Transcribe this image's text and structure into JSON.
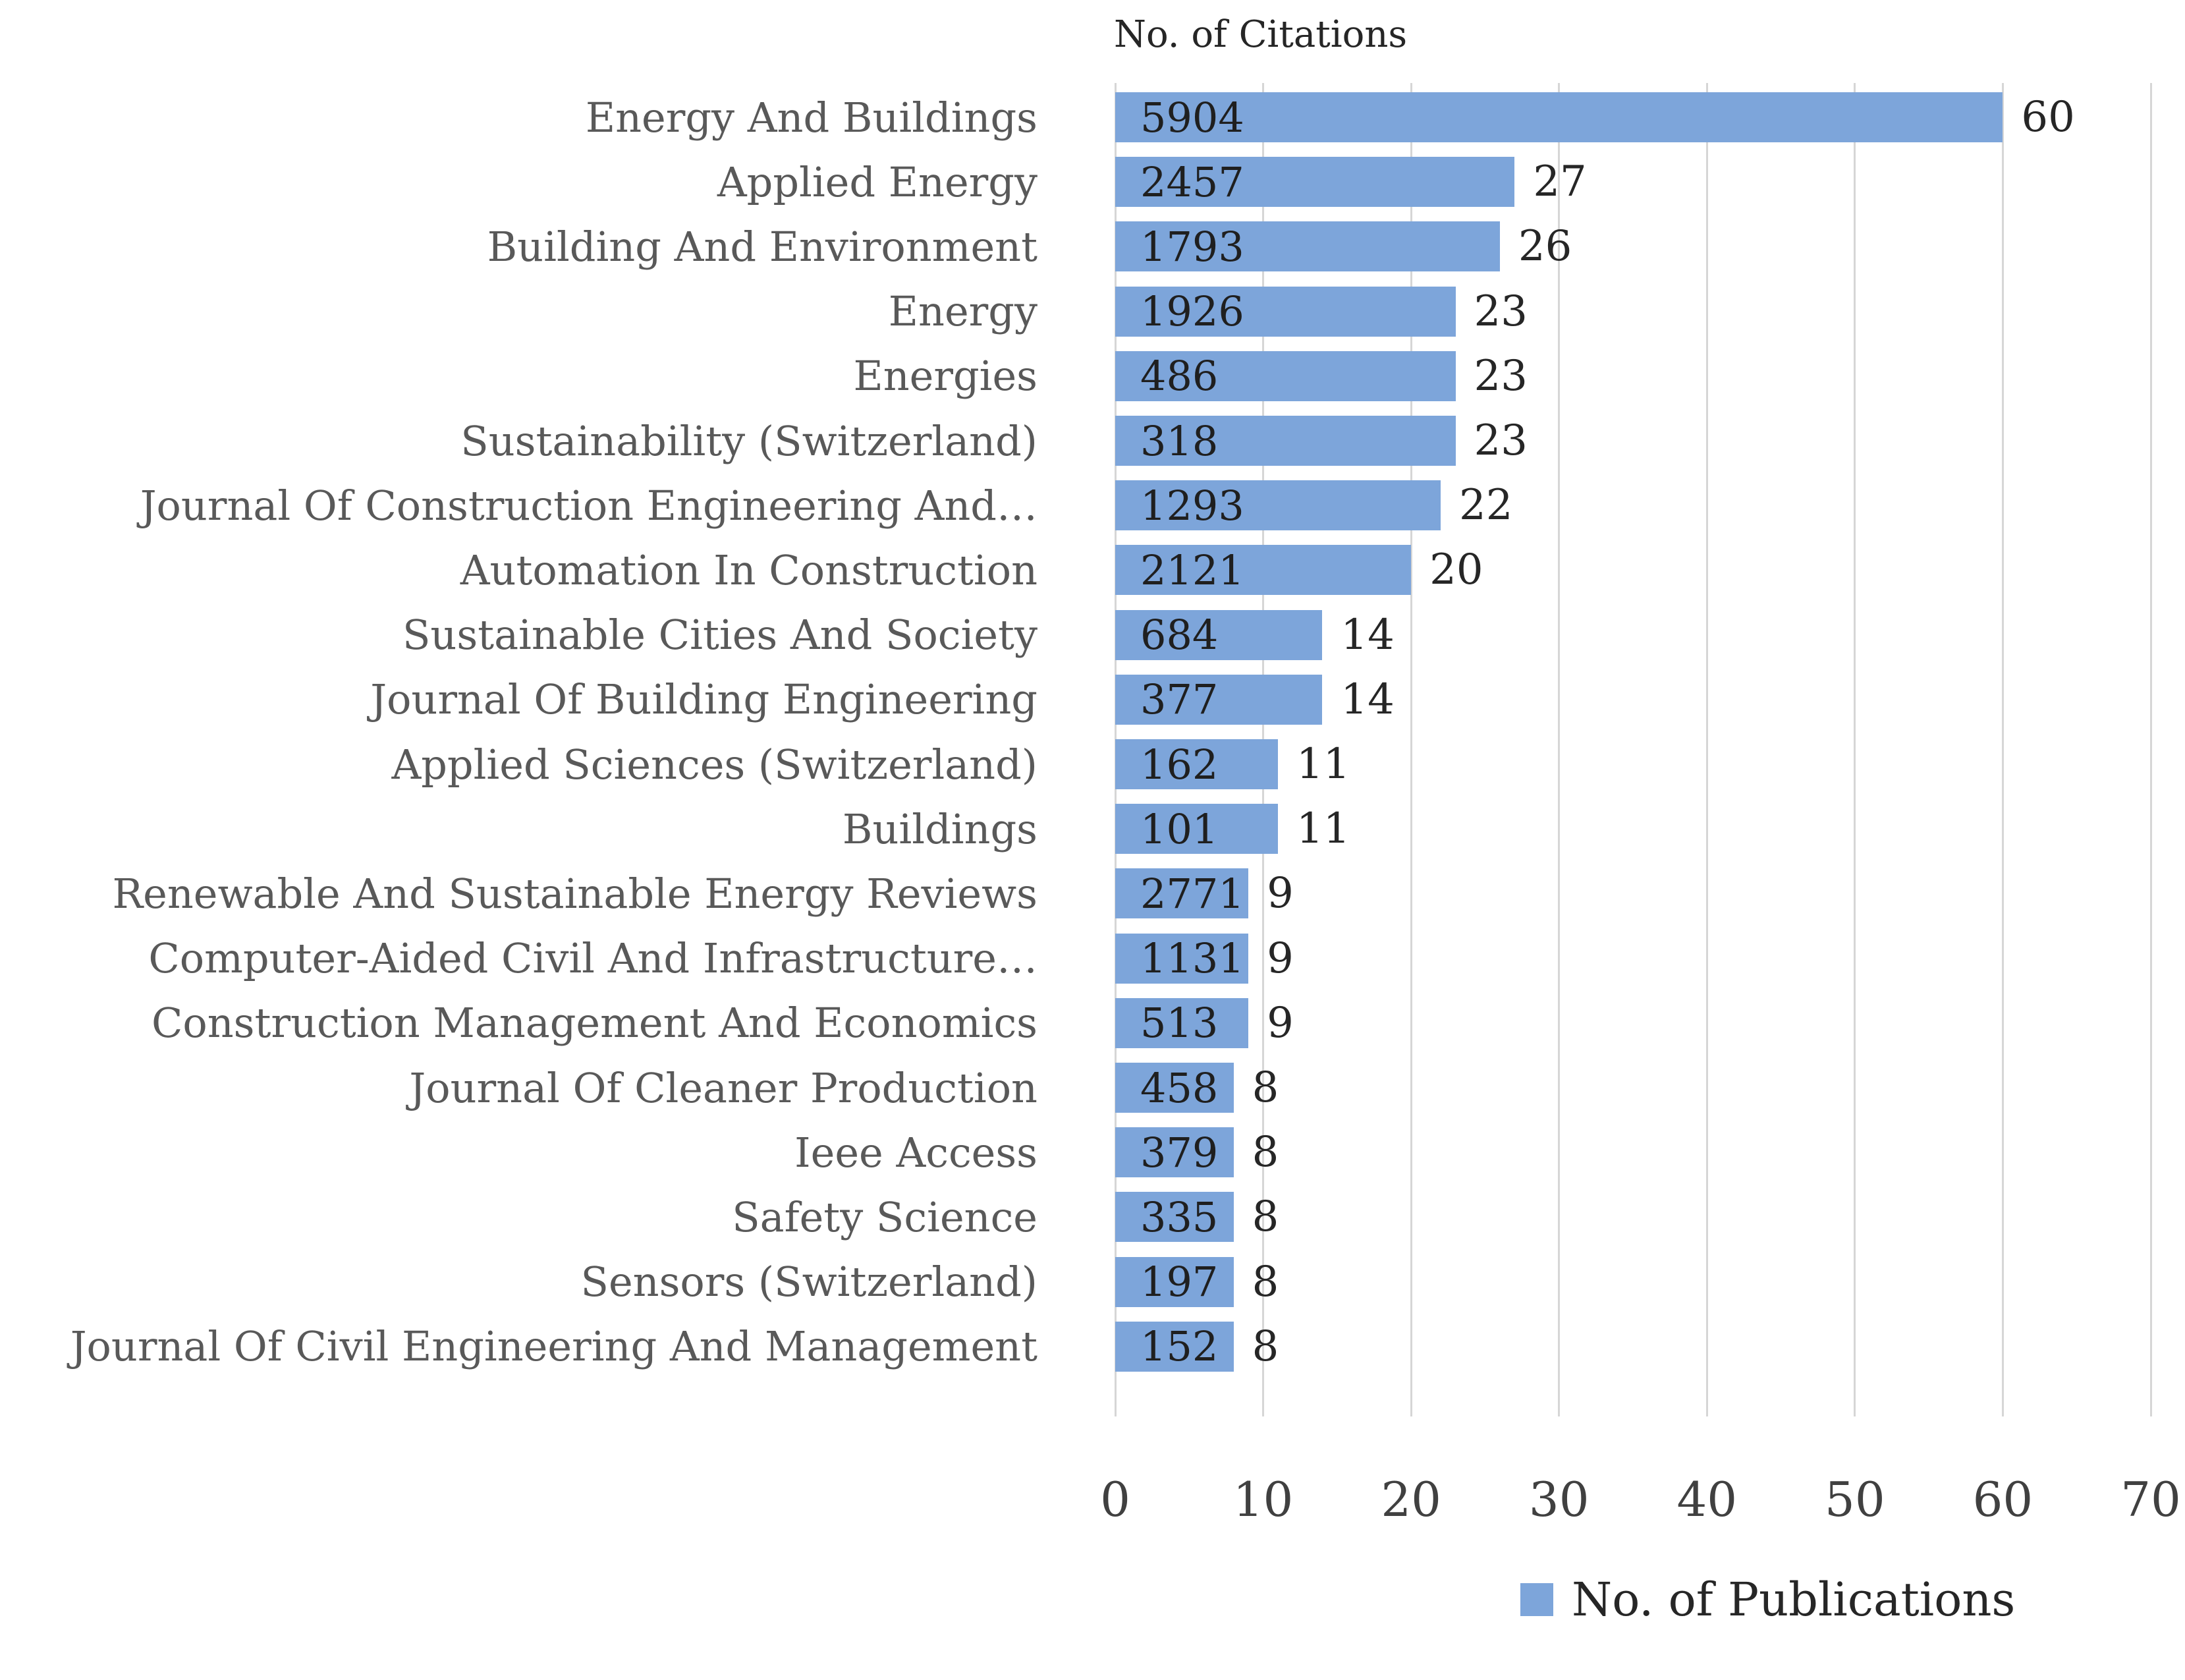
{
  "chart_data": {
    "type": "bar",
    "orientation": "horizontal",
    "title": "No. of Citations",
    "categories": [
      "Energy And Buildings",
      "Applied Energy",
      "Building And Environment",
      "Energy",
      "Energies",
      "Sustainability (Switzerland)",
      "Journal Of Construction Engineering And…",
      "Automation In Construction",
      "Sustainable Cities And Society",
      "Journal Of Building Engineering",
      "Applied Sciences (Switzerland)",
      "Buildings",
      "Renewable And Sustainable Energy Reviews",
      "Computer-Aided Civil And Infrastructure…",
      "Construction Management And Economics",
      "Journal Of Cleaner Production",
      "Ieee Access",
      "Safety Science",
      "Sensors (Switzerland)",
      "Journal Of Civil Engineering And Management"
    ],
    "series": [
      {
        "name": "No. of Publications",
        "values": [
          60,
          27,
          26,
          23,
          23,
          23,
          22,
          20,
          14,
          14,
          11,
          11,
          9,
          9,
          9,
          8,
          8,
          8,
          8,
          8
        ]
      },
      {
        "name": "No. of Citations (data labels inside bars)",
        "values": [
          5904,
          2457,
          1793,
          1926,
          486,
          318,
          1293,
          2121,
          684,
          377,
          162,
          101,
          2771,
          1131,
          513,
          458,
          379,
          335,
          197,
          152
        ]
      }
    ],
    "xlim": [
      0,
      70
    ],
    "x_ticks": [
      0,
      10,
      20,
      30,
      40,
      50,
      60,
      70
    ],
    "grid": "vertical",
    "legend": {
      "position": "bottom",
      "label": "No. of Publications"
    },
    "colors": {
      "bar_fill": "#7da5da",
      "gridline": "#d6d6d6",
      "category_text": "#595959",
      "value_text": "#1f1f1f",
      "axis_text": "#404040",
      "title_text": "#262626"
    }
  }
}
